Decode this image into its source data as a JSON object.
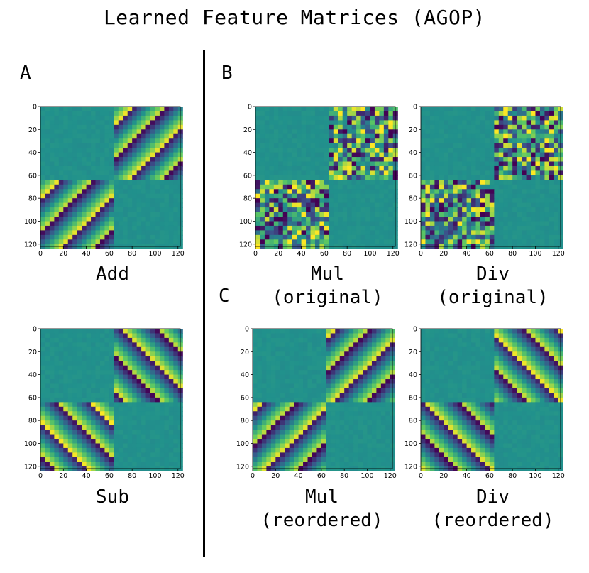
{
  "title": "Learned Feature Matrices (AGOP)",
  "panel_letters": {
    "a": "A",
    "b": "B",
    "c": "C"
  },
  "colormap": [
    "#440154",
    "#3b528b",
    "#21918c",
    "#5ec962",
    "#fde725"
  ],
  "chart_data": [
    {
      "id": "add",
      "type": "heatmap",
      "caption_lines": [
        "Add"
      ],
      "x_ticks": [
        0,
        20,
        40,
        60,
        80,
        100,
        120
      ],
      "y_ticks": [
        0,
        20,
        40,
        60,
        80,
        100,
        120
      ],
      "xlim": [
        0,
        122
      ],
      "ylim": [
        122,
        0
      ],
      "block_size": 61,
      "pattern": "anti-diagonal-stripes",
      "offdiagonal_blocks": "structured",
      "diagonal_blocks": "near-constant"
    },
    {
      "id": "mul-original",
      "type": "heatmap",
      "caption_lines": [
        "Mul",
        "(original)"
      ],
      "x_ticks": [
        0,
        20,
        40,
        60,
        80,
        100,
        120
      ],
      "y_ticks": [
        0,
        20,
        40,
        60,
        80,
        100,
        120
      ],
      "xlim": [
        0,
        122
      ],
      "ylim": [
        122,
        0
      ],
      "block_size": 61,
      "pattern": "random",
      "offdiagonal_blocks": "structured",
      "diagonal_blocks": "near-constant"
    },
    {
      "id": "div-original",
      "type": "heatmap",
      "caption_lines": [
        "Div",
        "(original)"
      ],
      "x_ticks": [
        0,
        20,
        40,
        60,
        80,
        100,
        120
      ],
      "y_ticks": [
        0,
        20,
        40,
        60,
        80,
        100,
        120
      ],
      "xlim": [
        0,
        122
      ],
      "ylim": [
        122,
        0
      ],
      "block_size": 61,
      "pattern": "random",
      "offdiagonal_blocks": "structured",
      "diagonal_blocks": "near-constant"
    },
    {
      "id": "sub",
      "type": "heatmap",
      "caption_lines": [
        "Sub"
      ],
      "x_ticks": [
        0,
        20,
        40,
        60,
        80,
        100,
        120
      ],
      "y_ticks": [
        0,
        20,
        40,
        60,
        80,
        100,
        120
      ],
      "xlim": [
        0,
        122
      ],
      "ylim": [
        122,
        0
      ],
      "block_size": 61,
      "pattern": "diagonal-stripes",
      "offdiagonal_blocks": "structured",
      "diagonal_blocks": "near-constant"
    },
    {
      "id": "mul-reordered",
      "type": "heatmap",
      "caption_lines": [
        "Mul",
        "(reordered)"
      ],
      "x_ticks": [
        0,
        20,
        40,
        60,
        80,
        100,
        120
      ],
      "y_ticks": [
        0,
        20,
        40,
        60,
        80,
        100,
        120
      ],
      "xlim": [
        0,
        122
      ],
      "ylim": [
        122,
        0
      ],
      "block_size": 61,
      "pattern": "anti-diagonal-stripes",
      "offdiagonal_blocks": "structured",
      "diagonal_blocks": "near-constant"
    },
    {
      "id": "div-reordered",
      "type": "heatmap",
      "caption_lines": [
        "Div",
        "(reordered)"
      ],
      "x_ticks": [
        0,
        20,
        40,
        60,
        80,
        100,
        120
      ],
      "y_ticks": [
        0,
        20,
        40,
        60,
        80,
        100,
        120
      ],
      "xlim": [
        0,
        122
      ],
      "ylim": [
        122,
        0
      ],
      "block_size": 61,
      "pattern": "diagonal-stripes",
      "offdiagonal_blocks": "structured",
      "diagonal_blocks": "near-constant"
    }
  ]
}
